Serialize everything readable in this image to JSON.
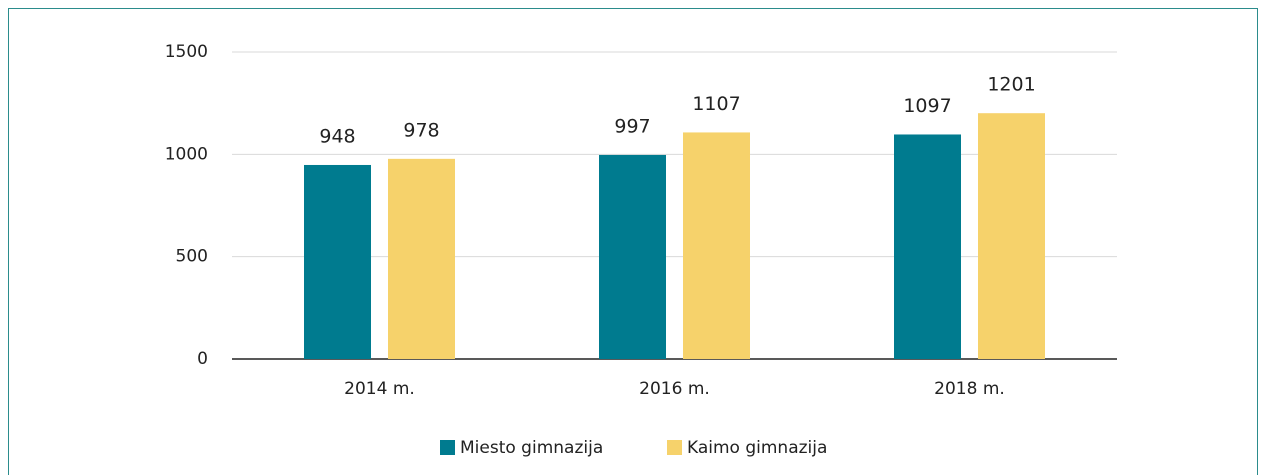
{
  "chart_data": {
    "type": "bar",
    "categories": [
      "2014 m.",
      "2016 m.",
      "2018 m."
    ],
    "series": [
      {
        "name": "Miesto gimnazija",
        "color": "#007b8f",
        "values": [
          948,
          997,
          1097
        ]
      },
      {
        "name": "Kaimo gimnazija",
        "color": "#f6d26b",
        "values": [
          978,
          1107,
          1201
        ]
      }
    ],
    "ylim": [
      0,
      1500
    ],
    "yticks": [
      0,
      500,
      1000,
      1500
    ],
    "grid": true,
    "legend": "bottom"
  }
}
